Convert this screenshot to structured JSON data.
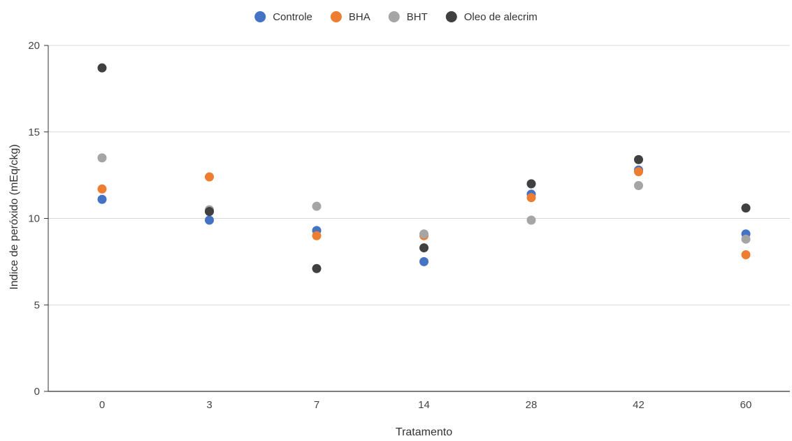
{
  "chart_data": {
    "type": "scatter",
    "title": "",
    "xlabel": "Tratamento",
    "ylabel": "Indice de peróxido (mEq/ckg)",
    "categories": [
      "0",
      "3",
      "7",
      "14",
      "28",
      "42",
      "60"
    ],
    "ylim": [
      0,
      20
    ],
    "yticks": [
      0,
      5,
      10,
      15,
      20
    ],
    "grid": "horizontal",
    "legend": "top-center",
    "series": [
      {
        "name": "Controle",
        "color": "#4472c4",
        "values": [
          11.1,
          9.9,
          9.3,
          7.5,
          11.4,
          12.8,
          9.1
        ]
      },
      {
        "name": "BHA",
        "color": "#ed7d31",
        "values": [
          11.7,
          12.4,
          9.0,
          9.0,
          11.2,
          12.7,
          7.9
        ]
      },
      {
        "name": "BHT",
        "color": "#a5a5a5",
        "values": [
          13.5,
          10.5,
          10.7,
          9.1,
          9.9,
          11.9,
          8.8
        ]
      },
      {
        "name": "Oleo de alecrim",
        "color": "#404040",
        "values": [
          18.7,
          10.4,
          7.1,
          8.3,
          12.0,
          13.4,
          10.6
        ]
      }
    ]
  }
}
